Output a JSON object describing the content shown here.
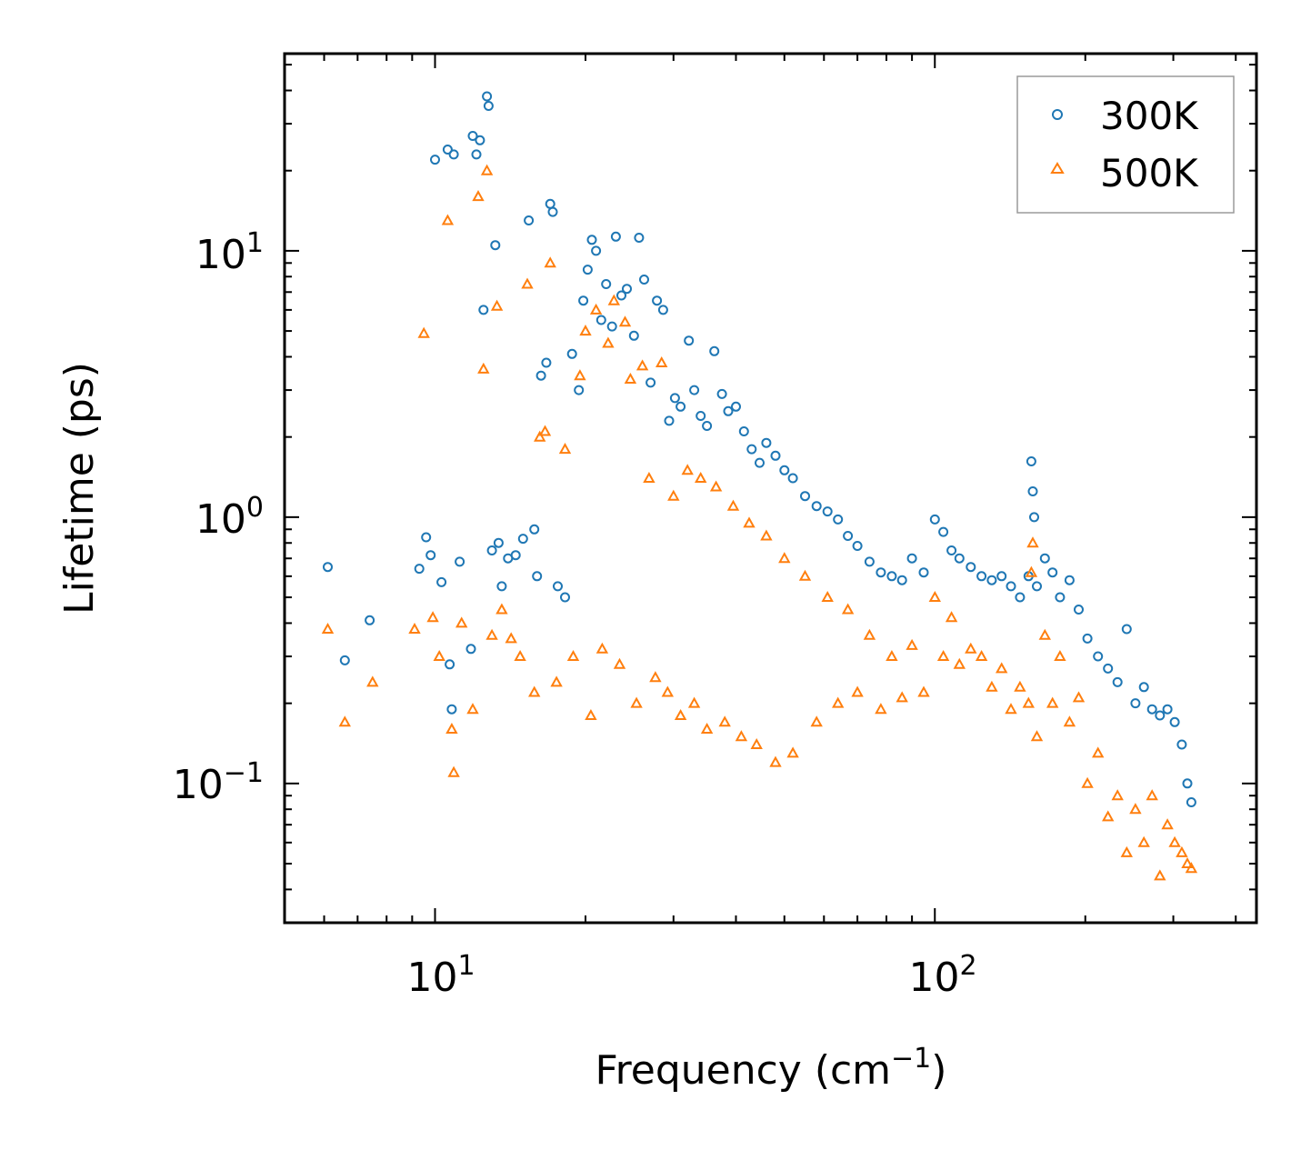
{
  "chart_data": {
    "type": "scatter",
    "title": "",
    "xlabel": "Frequency (cm",
    "xlabel_sup": "−1",
    "xlabel_end": ")",
    "ylabel": "Lifetime (ps)",
    "xscale": "log",
    "yscale": "log",
    "xlim": [
      5,
      440
    ],
    "ylim": [
      0.03,
      55
    ],
    "x_ticks": [
      {
        "value": 10,
        "base": "10",
        "exp": "1"
      },
      {
        "value": 100,
        "base": "10",
        "exp": "2"
      }
    ],
    "y_ticks": [
      {
        "value": 0.1,
        "base": "10",
        "exp": "−1"
      },
      {
        "value": 1,
        "base": "10",
        "exp": "0"
      },
      {
        "value": 10,
        "base": "10",
        "exp": "1"
      }
    ],
    "legend_position": "top-right",
    "series": [
      {
        "name": "300K",
        "marker": "circle",
        "color": "#1f77b4",
        "points": [
          [
            6.1,
            0.65
          ],
          [
            6.6,
            0.29
          ],
          [
            7.4,
            0.41
          ],
          [
            9.3,
            0.64
          ],
          [
            9.6,
            0.84
          ],
          [
            9.8,
            0.72
          ],
          [
            10.0,
            22.0
          ],
          [
            10.3,
            0.57
          ],
          [
            10.6,
            24.0
          ],
          [
            10.7,
            0.28
          ],
          [
            10.8,
            0.19
          ],
          [
            10.9,
            23.0
          ],
          [
            11.2,
            0.68
          ],
          [
            11.8,
            0.32
          ],
          [
            11.9,
            27.0
          ],
          [
            12.1,
            23.0
          ],
          [
            12.3,
            26.0
          ],
          [
            12.5,
            6.0
          ],
          [
            12.7,
            38.0
          ],
          [
            12.8,
            35.0
          ],
          [
            13.0,
            0.75
          ],
          [
            13.2,
            10.5
          ],
          [
            13.4,
            0.8
          ],
          [
            13.6,
            0.55
          ],
          [
            14.0,
            0.7
          ],
          [
            14.5,
            0.72
          ],
          [
            15.0,
            0.83
          ],
          [
            15.4,
            13.0
          ],
          [
            15.8,
            0.9
          ],
          [
            16.0,
            0.6
          ],
          [
            16.3,
            3.4
          ],
          [
            16.7,
            3.8
          ],
          [
            17.0,
            15.0
          ],
          [
            17.2,
            14.0
          ],
          [
            17.6,
            0.55
          ],
          [
            18.2,
            0.5
          ],
          [
            18.8,
            4.1
          ],
          [
            19.4,
            3.0
          ],
          [
            19.8,
            6.5
          ],
          [
            20.2,
            8.5
          ],
          [
            20.6,
            11.0
          ],
          [
            21.0,
            10.0
          ],
          [
            21.5,
            5.5
          ],
          [
            22.0,
            7.5
          ],
          [
            22.6,
            5.2
          ],
          [
            23.0,
            11.3
          ],
          [
            23.6,
            6.8
          ],
          [
            24.2,
            7.2
          ],
          [
            25.0,
            4.8
          ],
          [
            25.6,
            11.2
          ],
          [
            26.2,
            7.8
          ],
          [
            27.0,
            3.2
          ],
          [
            27.8,
            6.5
          ],
          [
            28.6,
            6.0
          ],
          [
            29.4,
            2.3
          ],
          [
            30.2,
            2.8
          ],
          [
            31.0,
            2.6
          ],
          [
            32.2,
            4.6
          ],
          [
            33.0,
            3.0
          ],
          [
            34.0,
            2.4
          ],
          [
            35.0,
            2.2
          ],
          [
            36.2,
            4.2
          ],
          [
            37.5,
            2.9
          ],
          [
            38.6,
            2.5
          ],
          [
            40.0,
            2.6
          ],
          [
            41.5,
            2.1
          ],
          [
            43.0,
            1.8
          ],
          [
            44.6,
            1.6
          ],
          [
            46.0,
            1.9
          ],
          [
            48.0,
            1.7
          ],
          [
            50.0,
            1.5
          ],
          [
            52.0,
            1.4
          ],
          [
            55.0,
            1.2
          ],
          [
            58.0,
            1.1
          ],
          [
            61.0,
            1.05
          ],
          [
            64.0,
            0.98
          ],
          [
            67.0,
            0.85
          ],
          [
            70.0,
            0.78
          ],
          [
            74.0,
            0.68
          ],
          [
            78.0,
            0.62
          ],
          [
            82.0,
            0.6
          ],
          [
            86.0,
            0.58
          ],
          [
            90.0,
            0.7
          ],
          [
            95.0,
            0.62
          ],
          [
            100.0,
            0.98
          ],
          [
            104.0,
            0.88
          ],
          [
            108.0,
            0.75
          ],
          [
            112.0,
            0.7
          ],
          [
            118.0,
            0.65
          ],
          [
            124.0,
            0.6
          ],
          [
            130.0,
            0.58
          ],
          [
            136.0,
            0.6
          ],
          [
            142.0,
            0.55
          ],
          [
            148.0,
            0.5
          ],
          [
            154.0,
            0.6
          ],
          [
            156.0,
            1.62
          ],
          [
            157.0,
            1.25
          ],
          [
            158.0,
            1.0
          ],
          [
            160.0,
            0.55
          ],
          [
            166.0,
            0.7
          ],
          [
            172.0,
            0.62
          ],
          [
            178.0,
            0.5
          ],
          [
            186.0,
            0.58
          ],
          [
            194.0,
            0.45
          ],
          [
            202.0,
            0.35
          ],
          [
            212.0,
            0.3
          ],
          [
            222.0,
            0.27
          ],
          [
            232.0,
            0.24
          ],
          [
            242.0,
            0.38
          ],
          [
            252.0,
            0.2
          ],
          [
            262.0,
            0.23
          ],
          [
            272.0,
            0.19
          ],
          [
            282.0,
            0.18
          ],
          [
            292.0,
            0.19
          ],
          [
            302.0,
            0.17
          ],
          [
            312.0,
            0.14
          ],
          [
            320.0,
            0.1
          ],
          [
            326.0,
            0.085
          ]
        ]
      },
      {
        "name": "500K",
        "marker": "triangle",
        "color": "#ff7f0e",
        "points": [
          [
            6.1,
            0.38
          ],
          [
            6.6,
            0.17
          ],
          [
            7.5,
            0.24
          ],
          [
            9.1,
            0.38
          ],
          [
            9.5,
            4.9
          ],
          [
            9.9,
            0.42
          ],
          [
            10.2,
            0.3
          ],
          [
            10.6,
            13.0
          ],
          [
            10.8,
            0.16
          ],
          [
            10.9,
            0.11
          ],
          [
            11.3,
            0.4
          ],
          [
            11.9,
            0.19
          ],
          [
            12.2,
            16.0
          ],
          [
            12.5,
            3.6
          ],
          [
            12.7,
            20.0
          ],
          [
            13.0,
            0.36
          ],
          [
            13.3,
            6.2
          ],
          [
            13.6,
            0.45
          ],
          [
            14.2,
            0.35
          ],
          [
            14.8,
            0.3
          ],
          [
            15.3,
            7.5
          ],
          [
            15.8,
            0.22
          ],
          [
            16.2,
            2.0
          ],
          [
            16.6,
            2.1
          ],
          [
            17.0,
            9.0
          ],
          [
            17.5,
            0.24
          ],
          [
            18.2,
            1.8
          ],
          [
            18.9,
            0.3
          ],
          [
            19.5,
            3.4
          ],
          [
            20.0,
            5.0
          ],
          [
            20.5,
            0.18
          ],
          [
            21.0,
            6.0
          ],
          [
            21.6,
            0.32
          ],
          [
            22.2,
            4.5
          ],
          [
            22.8,
            6.5
          ],
          [
            23.4,
            0.28
          ],
          [
            24.0,
            5.4
          ],
          [
            24.6,
            3.3
          ],
          [
            25.3,
            0.2
          ],
          [
            26.0,
            3.7
          ],
          [
            26.8,
            1.4
          ],
          [
            27.6,
            0.25
          ],
          [
            28.4,
            3.8
          ],
          [
            29.2,
            0.22
          ],
          [
            30.0,
            1.2
          ],
          [
            31.0,
            0.18
          ],
          [
            32.0,
            1.5
          ],
          [
            33.0,
            0.2
          ],
          [
            34.0,
            1.4
          ],
          [
            35.0,
            0.16
          ],
          [
            36.5,
            1.3
          ],
          [
            38.0,
            0.17
          ],
          [
            39.5,
            1.1
          ],
          [
            41.0,
            0.15
          ],
          [
            42.5,
            0.95
          ],
          [
            44.0,
            0.14
          ],
          [
            46.0,
            0.85
          ],
          [
            48.0,
            0.12
          ],
          [
            50.0,
            0.7
          ],
          [
            52.0,
            0.13
          ],
          [
            55.0,
            0.6
          ],
          [
            58.0,
            0.17
          ],
          [
            61.0,
            0.5
          ],
          [
            64.0,
            0.2
          ],
          [
            67.0,
            0.45
          ],
          [
            70.0,
            0.22
          ],
          [
            74.0,
            0.36
          ],
          [
            78.0,
            0.19
          ],
          [
            82.0,
            0.3
          ],
          [
            86.0,
            0.21
          ],
          [
            90.0,
            0.33
          ],
          [
            95.0,
            0.22
          ],
          [
            100.0,
            0.5
          ],
          [
            104.0,
            0.3
          ],
          [
            108.0,
            0.42
          ],
          [
            112.0,
            0.28
          ],
          [
            118.0,
            0.32
          ],
          [
            124.0,
            0.3
          ],
          [
            130.0,
            0.23
          ],
          [
            136.0,
            0.27
          ],
          [
            142.0,
            0.19
          ],
          [
            148.0,
            0.23
          ],
          [
            154.0,
            0.2
          ],
          [
            156.0,
            0.62
          ],
          [
            157.0,
            0.8
          ],
          [
            160.0,
            0.15
          ],
          [
            166.0,
            0.36
          ],
          [
            172.0,
            0.2
          ],
          [
            178.0,
            0.3
          ],
          [
            186.0,
            0.17
          ],
          [
            194.0,
            0.21
          ],
          [
            202.0,
            0.1
          ],
          [
            212.0,
            0.13
          ],
          [
            222.0,
            0.075
          ],
          [
            232.0,
            0.09
          ],
          [
            242.0,
            0.055
          ],
          [
            252.0,
            0.08
          ],
          [
            262.0,
            0.06
          ],
          [
            272.0,
            0.09
          ],
          [
            282.0,
            0.045
          ],
          [
            292.0,
            0.07
          ],
          [
            302.0,
            0.06
          ],
          [
            312.0,
            0.055
          ],
          [
            320.0,
            0.05
          ],
          [
            326.0,
            0.048
          ]
        ]
      }
    ]
  }
}
